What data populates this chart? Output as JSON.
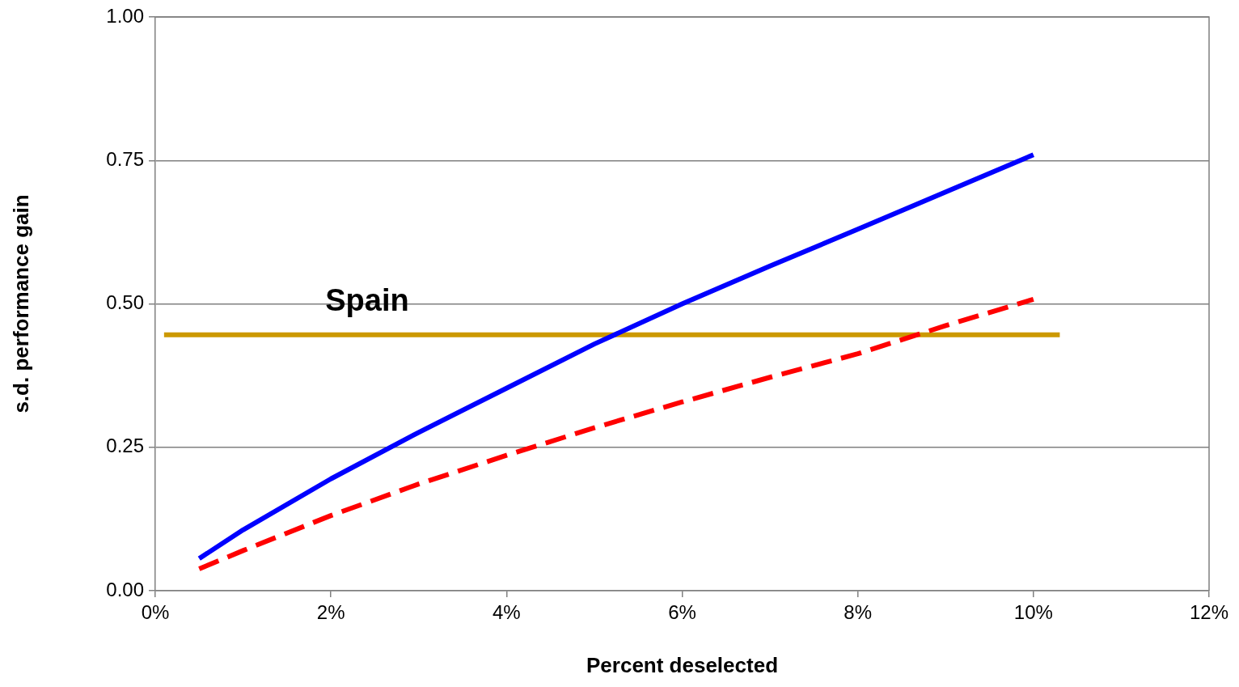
{
  "chart_data": {
    "type": "line",
    "xlabel": "Percent deselected",
    "ylabel": "s.d. performance gain",
    "xlim": [
      0,
      12
    ],
    "xticks": [
      {
        "value": 0,
        "label": "0%"
      },
      {
        "value": 2,
        "label": "2%"
      },
      {
        "value": 4,
        "label": "4%"
      },
      {
        "value": 6,
        "label": "6%"
      },
      {
        "value": 8,
        "label": "8%"
      },
      {
        "value": 10,
        "label": "10%"
      },
      {
        "value": 12,
        "label": "12%"
      }
    ],
    "ylim": [
      0,
      1
    ],
    "yticks": [
      {
        "value": 0,
        "label": "0.00"
      },
      {
        "value": 0.25,
        "label": "0.25"
      },
      {
        "value": 0.5,
        "label": "0.50"
      },
      {
        "value": 0.75,
        "label": "0.75"
      },
      {
        "value": 1,
        "label": "1.00"
      }
    ],
    "grid": "y",
    "legend": false,
    "marker": "none",
    "series": [
      {
        "color": "#0000ff",
        "line_style": "solid",
        "x": [
          0.5,
          1,
          2,
          3,
          4,
          5,
          6,
          7,
          8,
          9,
          10
        ],
        "values": [
          0.056,
          0.106,
          0.195,
          0.276,
          0.353,
          0.43,
          0.5,
          0.566,
          0.63,
          0.695,
          0.76
        ]
      },
      {
        "color": "#ff0000",
        "line_style": "dashed",
        "x": [
          0.5,
          1,
          2,
          3,
          4,
          5,
          6,
          7,
          8,
          9,
          10
        ],
        "values": [
          0.038,
          0.07,
          0.131,
          0.186,
          0.236,
          0.284,
          0.329,
          0.372,
          0.413,
          0.462,
          0.508
        ]
      },
      {
        "name": "Spain",
        "color": "#cc9900",
        "line_style": "solid",
        "x": [
          0.1,
          10.3
        ],
        "values": [
          0.446,
          0.446
        ]
      }
    ]
  }
}
